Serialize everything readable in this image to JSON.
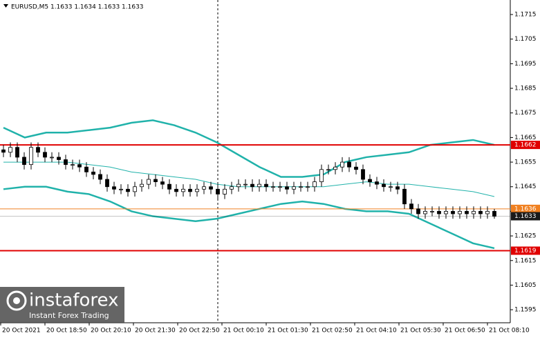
{
  "chart_data": {
    "type": "candlestick",
    "title": "EURUSD,M5  1.1633 1.1634 1.1633 1.1633",
    "ylim": [
      1.15897,
      1.17209
    ],
    "yticks": [
      1.1715,
      1.1705,
      1.1695,
      1.1685,
      1.1675,
      1.1665,
      1.1655,
      1.1645,
      1.1635,
      1.1625,
      1.1615,
      1.1605,
      1.1595
    ],
    "categories": [
      "20 Oct 2021",
      "20 Oct 18:50",
      "20 Oct 20:10",
      "20 Oct 21:30",
      "20 Oct 22:50",
      "21 Oct 00:10",
      "21 Oct 01:30",
      "21 Oct 02:50",
      "21 Oct 04:10",
      "21 Oct 05:30",
      "21 Oct 06:50",
      "21 Oct 08:10"
    ],
    "candles": {
      "open": [
        1.166,
        1.1659,
        1.1661,
        1.1657,
        1.1654,
        1.1661,
        1.1659,
        1.1657,
        1.1657,
        1.1656,
        1.1654,
        1.1654,
        1.1653,
        1.1651,
        1.165,
        1.1648,
        1.1645,
        1.1644,
        1.1644,
        1.1643,
        1.1645,
        1.1646,
        1.1648,
        1.1647,
        1.1646,
        1.1644,
        1.1643,
        1.1644,
        1.1643,
        1.1644,
        1.1645,
        1.1644,
        1.1642,
        1.1644,
        1.1645,
        1.1646,
        1.1646,
        1.1645,
        1.1646,
        1.1645,
        1.1645,
        1.1645,
        1.1644,
        1.1645,
        1.1645,
        1.1645,
        1.1647,
        1.1652,
        1.1652,
        1.1653,
        1.1655,
        1.1653,
        1.1652,
        1.1648,
        1.1647,
        1.1646,
        1.1645,
        1.1645,
        1.1644,
        1.1638,
        1.1636,
        1.1634,
        1.1635,
        1.1635,
        1.1634,
        1.1635,
        1.1634,
        1.1635,
        1.1634,
        1.1635,
        1.1634,
        1.1635
      ],
      "high": [
        1.1662,
        1.1663,
        1.1663,
        1.1659,
        1.1663,
        1.1663,
        1.1661,
        1.1659,
        1.1659,
        1.1658,
        1.1656,
        1.1656,
        1.1655,
        1.1653,
        1.1652,
        1.165,
        1.1647,
        1.1646,
        1.1646,
        1.1647,
        1.1648,
        1.165,
        1.165,
        1.1649,
        1.1648,
        1.1646,
        1.1646,
        1.1646,
        1.1646,
        1.1647,
        1.1647,
        1.1646,
        1.1646,
        1.1647,
        1.1648,
        1.1648,
        1.1648,
        1.1648,
        1.1648,
        1.1647,
        1.1647,
        1.1647,
        1.1647,
        1.1647,
        1.1647,
        1.1649,
        1.1654,
        1.1654,
        1.1655,
        1.1657,
        1.1657,
        1.1655,
        1.1654,
        1.165,
        1.1649,
        1.1648,
        1.1647,
        1.1647,
        1.1646,
        1.164,
        1.1638,
        1.1637,
        1.1637,
        1.1637,
        1.1637,
        1.1637,
        1.1637,
        1.1637,
        1.1637,
        1.1637,
        1.1637,
        1.1636
      ],
      "low": [
        1.1657,
        1.1657,
        1.1655,
        1.1652,
        1.1652,
        1.1657,
        1.1655,
        1.1655,
        1.1654,
        1.1652,
        1.1652,
        1.1651,
        1.1649,
        1.1648,
        1.1646,
        1.1643,
        1.1642,
        1.1642,
        1.1641,
        1.1641,
        1.1643,
        1.1644,
        1.1645,
        1.1644,
        1.1642,
        1.1641,
        1.1641,
        1.1641,
        1.1641,
        1.1642,
        1.1642,
        1.164,
        1.164,
        1.1642,
        1.1643,
        1.1644,
        1.1643,
        1.1643,
        1.1643,
        1.1643,
        1.1643,
        1.1642,
        1.1642,
        1.1643,
        1.1643,
        1.1643,
        1.1645,
        1.165,
        1.165,
        1.1651,
        1.1651,
        1.165,
        1.1646,
        1.1645,
        1.1644,
        1.1643,
        1.1643,
        1.1642,
        1.1636,
        1.1634,
        1.1632,
        1.1632,
        1.1633,
        1.1632,
        1.1632,
        1.1632,
        1.1632,
        1.1632,
        1.1632,
        1.1632,
        1.1632,
        1.1632
      ],
      "close": [
        1.1659,
        1.1661,
        1.1657,
        1.1654,
        1.1661,
        1.1659,
        1.1657,
        1.1657,
        1.1656,
        1.1654,
        1.1654,
        1.1653,
        1.1651,
        1.165,
        1.1648,
        1.1645,
        1.1644,
        1.1644,
        1.1643,
        1.1645,
        1.1646,
        1.1648,
        1.1647,
        1.1646,
        1.1644,
        1.1643,
        1.1644,
        1.1643,
        1.1644,
        1.1645,
        1.1644,
        1.1642,
        1.1644,
        1.1645,
        1.1646,
        1.1646,
        1.1645,
        1.1646,
        1.1645,
        1.1645,
        1.1645,
        1.1644,
        1.1645,
        1.1645,
        1.1645,
        1.1647,
        1.1652,
        1.1652,
        1.1653,
        1.1655,
        1.1653,
        1.1652,
        1.1648,
        1.1647,
        1.1646,
        1.1645,
        1.1645,
        1.1644,
        1.1638,
        1.1636,
        1.1634,
        1.1635,
        1.1635,
        1.1634,
        1.1635,
        1.1634,
        1.1635,
        1.1634,
        1.1635,
        1.1634,
        1.1635,
        1.1633
      ],
      "up_color": "#ffffff",
      "down_color": "#000000",
      "edge_color": "#000000"
    },
    "bands": [
      {
        "color": "#20b2aa",
        "values": [
          1.1669,
          1.1665,
          1.1667,
          1.1667,
          1.1668,
          1.1669,
          1.1671,
          1.1672,
          1.167,
          1.1667,
          1.1663,
          1.1658,
          1.1653,
          1.1649,
          1.1649,
          1.165,
          1.1655,
          1.1657,
          1.1658,
          1.1659,
          1.1662,
          1.1663,
          1.1664,
          1.1662
        ]
      },
      {
        "color": "#20b2aa",
        "values": [
          1.1655,
          1.1655,
          1.1655,
          1.1655,
          1.1654,
          1.1653,
          1.1651,
          1.165,
          1.1649,
          1.1648,
          1.1646,
          1.1645,
          1.1645,
          1.1645,
          1.1645,
          1.1645,
          1.1646,
          1.1647,
          1.1646,
          1.1646,
          1.1645,
          1.1644,
          1.1643,
          1.1641
        ]
      },
      {
        "color": "#20b2aa",
        "values": [
          1.1644,
          1.1645,
          1.1645,
          1.1643,
          1.1642,
          1.1639,
          1.1635,
          1.1633,
          1.1632,
          1.1631,
          1.1632,
          1.1634,
          1.1636,
          1.1638,
          1.1639,
          1.1638,
          1.1636,
          1.1635,
          1.1635,
          1.1634,
          1.163,
          1.1626,
          1.1622,
          1.162
        ]
      }
    ],
    "levels": [
      {
        "value": 1.1662,
        "color": "#e00000"
      },
      {
        "value": 1.1636,
        "color": "#f08020"
      },
      {
        "value": 1.1633,
        "color": "#1a1a1a"
      },
      {
        "value": 1.1619,
        "color": "#e00000"
      }
    ],
    "watermark": {
      "brand": "instaforex",
      "tagline": "Instant Forex Trading"
    }
  }
}
